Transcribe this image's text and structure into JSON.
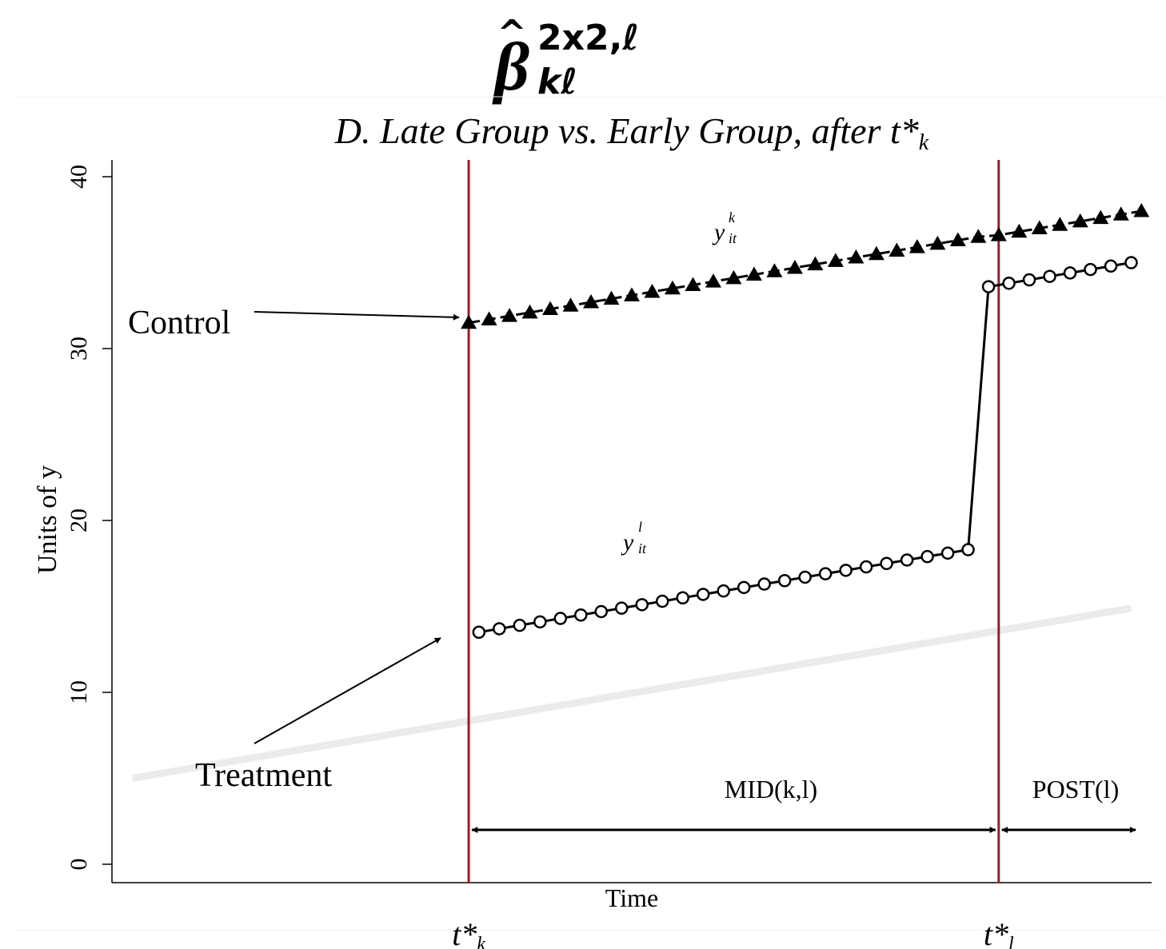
{
  "header": {
    "beta_symbol": "β",
    "hat_symbol": "^",
    "superscript": "2x2,ℓ",
    "subscript": "kℓ"
  },
  "chart_data": {
    "type": "line",
    "title": "D. Late Group vs. Early Group, after t*",
    "title_subscript": "k",
    "xlabel": "Time",
    "ylabel": "Units of y",
    "ylim": [
      0,
      40
    ],
    "y_ticks": [
      "0",
      "10",
      "20",
      "30",
      "40"
    ],
    "x_range": [
      0,
      51
    ],
    "t_star_k": 17.5,
    "t_star_l": 43.5,
    "x_markers": [
      {
        "name": "t*",
        "sub": "k"
      },
      {
        "name": "t*",
        "sub": "l"
      }
    ],
    "series": [
      {
        "name": "y^k_it",
        "label_main": "y",
        "label_sup": "k",
        "label_sub": "it",
        "marker": "triangle",
        "x": [
          17.5,
          18.5,
          19.5,
          20.5,
          21.5,
          22.5,
          23.5,
          24.5,
          25.5,
          26.5,
          27.5,
          28.5,
          29.5,
          30.5,
          31.5,
          32.5,
          33.5,
          34.5,
          35.5,
          36.5,
          37.5,
          38.5,
          39.5,
          40.5,
          41.5,
          42.5,
          43.5,
          44.5,
          45.5,
          46.5,
          47.5,
          48.5,
          49.5,
          50.5
        ],
        "y": [
          31.5,
          31.7,
          31.9,
          32.1,
          32.3,
          32.5,
          32.7,
          32.9,
          33.1,
          33.3,
          33.5,
          33.7,
          33.9,
          34.1,
          34.3,
          34.5,
          34.7,
          34.9,
          35.1,
          35.3,
          35.5,
          35.7,
          35.9,
          36.1,
          36.3,
          36.5,
          36.6,
          36.8,
          37.0,
          37.2,
          37.4,
          37.6,
          37.8,
          38.0
        ]
      },
      {
        "name": "y^l_it",
        "label_main": "y",
        "label_sup": "l",
        "label_sub": "it",
        "marker": "circle",
        "x": [
          18,
          19,
          20,
          21,
          22,
          23,
          24,
          25,
          26,
          27,
          28,
          29,
          30,
          31,
          32,
          33,
          34,
          35,
          36,
          37,
          38,
          39,
          40,
          41,
          42,
          43,
          44,
          45,
          46,
          47,
          48,
          49,
          50
        ],
        "y": [
          13.5,
          13.7,
          13.9,
          14.1,
          14.3,
          14.5,
          14.7,
          14.9,
          15.1,
          15.3,
          15.5,
          15.7,
          15.9,
          16.1,
          16.3,
          16.5,
          16.7,
          16.9,
          17.1,
          17.3,
          17.5,
          17.7,
          17.9,
          18.1,
          18.3,
          33.6,
          33.8,
          34.0,
          34.2,
          34.4,
          34.6,
          34.8,
          35.0
        ]
      },
      {
        "name": "counterfactual",
        "marker": "none",
        "color": "#ebebeb",
        "x": [
          1,
          50
        ],
        "y": [
          5.0,
          14.9
        ]
      }
    ],
    "annotations": {
      "control": "Control",
      "treatment": "Treatment",
      "mid": "MID(k,l)",
      "post": "POST(l)"
    },
    "colors": {
      "vline": "#9b1c2e",
      "ink": "#000000",
      "counterfactual": "#ebebeb"
    }
  }
}
